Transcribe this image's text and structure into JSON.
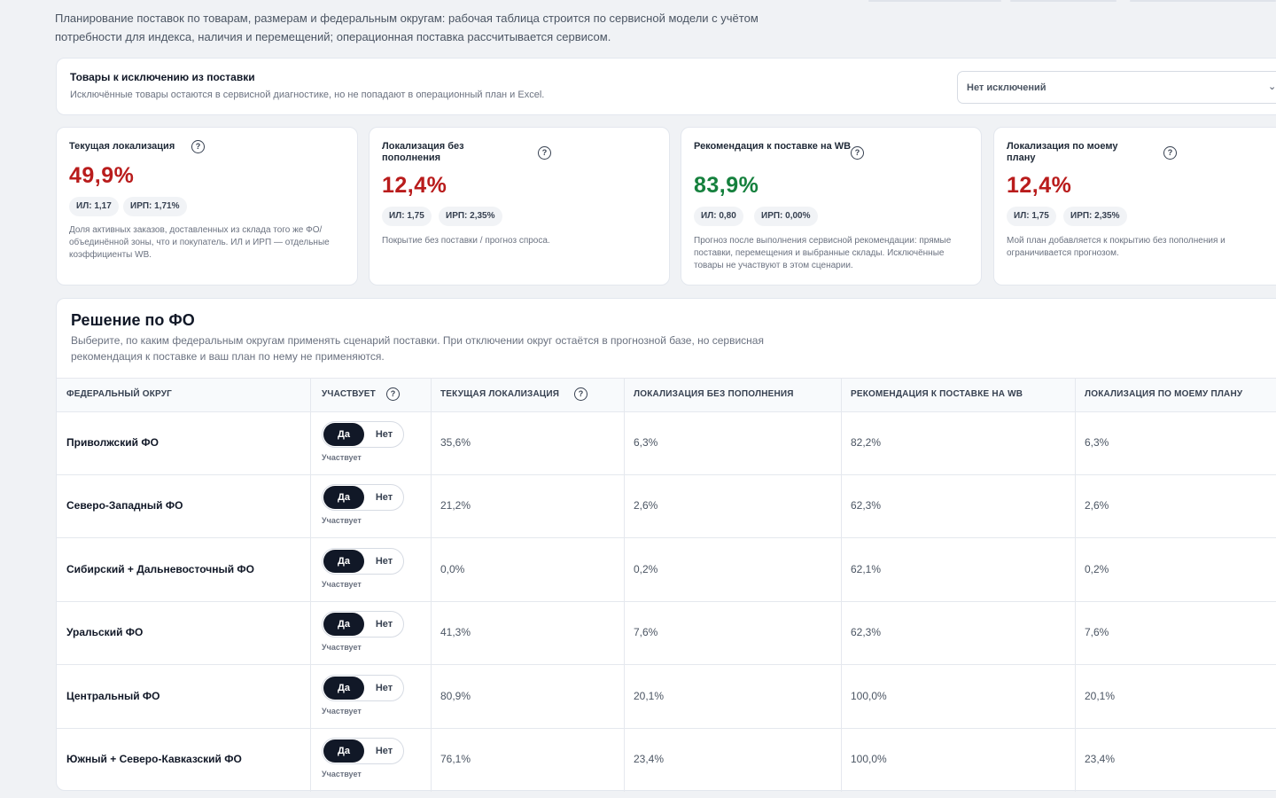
{
  "intro": {
    "line1": "Планирование поставок по товарам, размерам и федеральным округам: рабочая таблица строится по сервисной модели с учётом",
    "line2": "потребности для индекса, наличия и перемещений; операционная поставка рассчитывается сервисом."
  },
  "exclusions": {
    "title": "Товары к исключению из поставки",
    "subtitle": "Исключённые товары остаются в сервисной диагностике, но не попадают в операционный план и Excel.",
    "select_value": "Нет исключений",
    "select_icon": "chevron-down-icon"
  },
  "cards": [
    {
      "title": "Текущая локализация",
      "value": "49,9%",
      "value_color": "#b91c1c",
      "chip_il": "ИЛ: 1,17",
      "chip_irp": "ИРП: 1,71%",
      "note": "Доля активных заказов, доставленных из склада того же ФО/объединённой зоны, что и покупатель. ИЛ и ИРП — отдельные коэффициенты WB."
    },
    {
      "title": "Локализация без пополнения",
      "value": "12,4%",
      "value_color": "#b91c1c",
      "chip_il": "ИЛ: 1,75",
      "chip_irp": "ИРП: 2,35%",
      "note": "Покрытие без поставки / прогноз спроса."
    },
    {
      "title": "Рекомендация к поставке на WB",
      "value": "83,9%",
      "value_color": "#15803d",
      "chip_il": "ИЛ: 0,80",
      "chip_irp": "ИРП: 0,00%",
      "note": "Прогноз после выполнения сервисной рекомендации: прямые поставки, перемещения и выбранные склады. Исключённые товары не участвуют в этом сценарии."
    },
    {
      "title": "Локализация по моему плану",
      "value": "12,4%",
      "value_color": "#b91c1c",
      "chip_il": "ИЛ: 1,75",
      "chip_irp": "ИРП: 2,35%",
      "note": "Мой план добавляется к покрытию без пополнения и ограничивается прогнозом."
    }
  ],
  "fo": {
    "title": "Решение по ФО",
    "subtitle": "Выберите, по каким федеральным округам применять сценарий поставки. При отключении округ остаётся в прогнозной базе, но сервисная рекомендация к поставке и ваш план по нему не применяются.",
    "columns": {
      "district": "ФЕДЕРАЛЬНЫЙ ОКРУГ",
      "participates": "УЧАСТВУЕТ",
      "current": "ТЕКУЩАЯ ЛОКАЛИЗАЦИЯ",
      "no_replenish": "ЛОКАЛИЗАЦИЯ БЕЗ ПОПОЛНЕНИЯ",
      "recommend": "РЕКОМЕНДАЦИЯ К ПОСТАВКЕ НА WB",
      "my_plan": "ЛОКАЛИЗАЦИЯ ПО МОЕМУ ПЛАНУ"
    },
    "toggle_yes": "Да",
    "toggle_no": "Нет",
    "toggle_note": "Участвует",
    "rows": [
      {
        "name": "Приволжский ФО",
        "current": "35,6%",
        "no_replenish": "6,3%",
        "recommend": "82,2%",
        "my_plan": "6,3%"
      },
      {
        "name": "Северо-Западный ФО",
        "current": "21,2%",
        "no_replenish": "2,6%",
        "recommend": "62,3%",
        "my_plan": "2,6%"
      },
      {
        "name": "Сибирский + Дальневосточный ФО",
        "current": "0,0%",
        "no_replenish": "0,2%",
        "recommend": "62,1%",
        "my_plan": "0,2%"
      },
      {
        "name": "Уральский ФО",
        "current": "41,3%",
        "no_replenish": "7,6%",
        "recommend": "62,3%",
        "my_plan": "7,6%"
      },
      {
        "name": "Центральный ФО",
        "current": "80,9%",
        "no_replenish": "20,1%",
        "recommend": "100,0%",
        "my_plan": "20,1%"
      },
      {
        "name": "Южный + Северо-Кавказский ФО",
        "current": "76,1%",
        "no_replenish": "23,4%",
        "recommend": "100,0%",
        "my_plan": "23,4%"
      }
    ]
  }
}
